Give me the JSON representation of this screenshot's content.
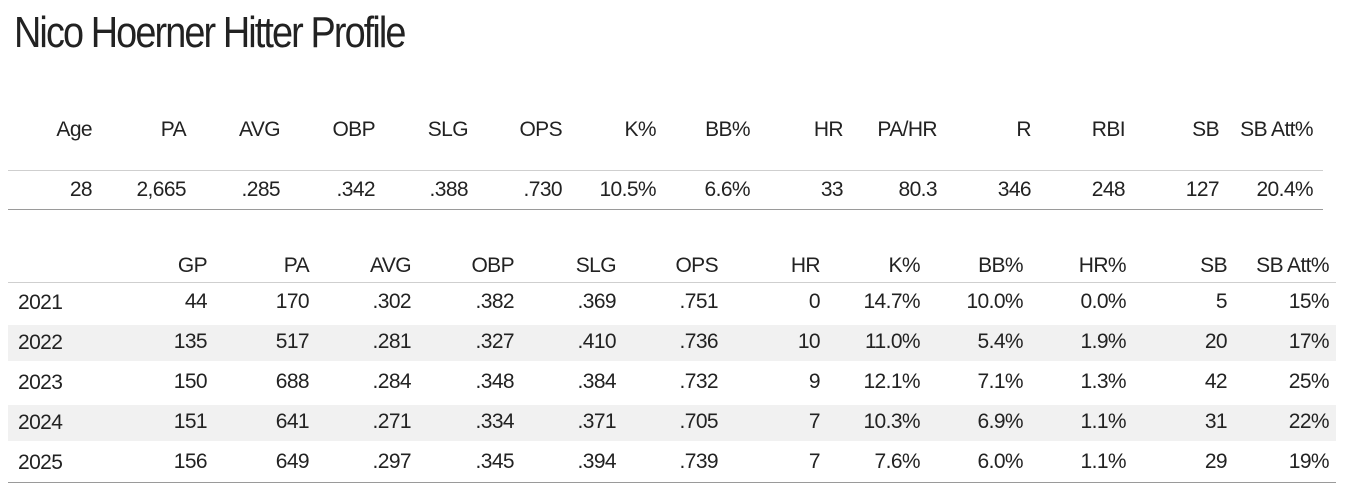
{
  "title": "Nico Hoerner Hitter Profile",
  "career": {
    "headers": [
      "Age",
      "PA",
      "AVG",
      "OBP",
      "SLG",
      "OPS",
      "K%",
      "BB%",
      "HR",
      "PA/HR",
      "R",
      "RBI",
      "SB",
      "SB Att%"
    ],
    "values": [
      "28",
      "2,665",
      ".285",
      ".342",
      ".388",
      ".730",
      "10.5%",
      "6.6%",
      "33",
      "80.3",
      "346",
      "248",
      "127",
      "20.4%"
    ]
  },
  "seasons": {
    "headers": [
      "",
      "GP",
      "PA",
      "AVG",
      "OBP",
      "SLG",
      "OPS",
      "HR",
      "K%",
      "BB%",
      "HR%",
      "SB",
      "SB Att%"
    ],
    "rows": [
      [
        "2021",
        "44",
        "170",
        ".302",
        ".382",
        ".369",
        ".751",
        "0",
        "14.7%",
        "10.0%",
        "0.0%",
        "5",
        "15%"
      ],
      [
        "2022",
        "135",
        "517",
        ".281",
        ".327",
        ".410",
        ".736",
        "10",
        "11.0%",
        "5.4%",
        "1.9%",
        "20",
        "17%"
      ],
      [
        "2023",
        "150",
        "688",
        ".284",
        ".348",
        ".384",
        ".732",
        "9",
        "12.1%",
        "7.1%",
        "1.3%",
        "42",
        "25%"
      ],
      [
        "2024",
        "151",
        "641",
        ".271",
        ".334",
        ".371",
        ".705",
        "7",
        "10.3%",
        "6.9%",
        "1.1%",
        "31",
        "22%"
      ],
      [
        "2025",
        "156",
        "649",
        ".297",
        ".345",
        ".394",
        ".739",
        "7",
        "7.6%",
        "6.0%",
        "1.1%",
        "29",
        "19%"
      ]
    ]
  }
}
